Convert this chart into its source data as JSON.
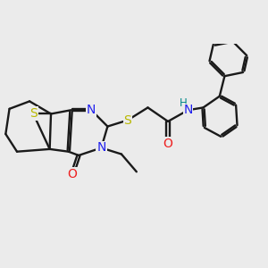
{
  "bg": "#ebebeb",
  "bc": "#1a1a1a",
  "bw": 1.7,
  "dbo": 0.05,
  "afs": 9,
  "colors": {
    "S": "#b8b800",
    "N": "#2020ee",
    "O": "#ee2020",
    "H": "#008888"
  },
  "figsize": [
    3.0,
    3.0
  ],
  "dpi": 100,
  "xlim": [
    0.2,
    10.8
  ],
  "ylim": [
    2.0,
    9.2
  ]
}
